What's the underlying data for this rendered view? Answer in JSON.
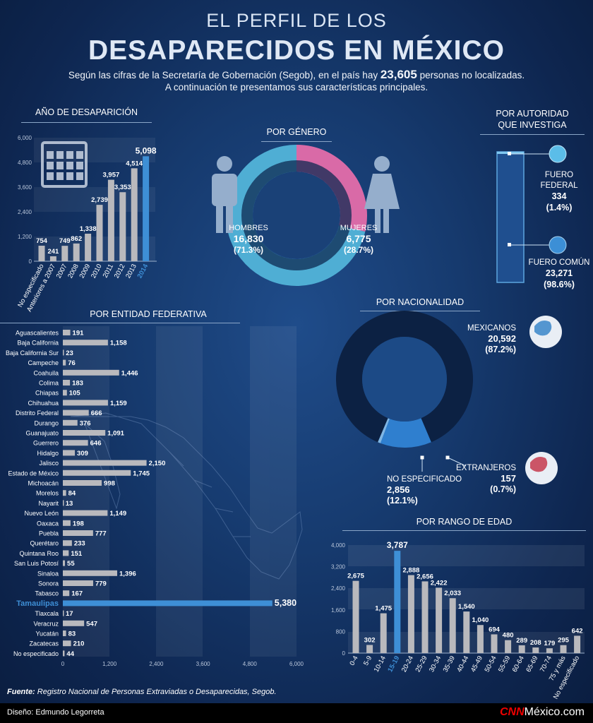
{
  "header": {
    "line1": "EL PERFIL DE LOS",
    "line2": "DESAPARECIDOS EN MÉXICO",
    "subtitle_before": "Según las cifras de la Secretaría de Gobernación (Segob), en el país hay ",
    "subtitle_number": "23,605",
    "subtitle_after": " personas no localizadas.",
    "subtitle_line2": "A continuación te presentamos sus características principales."
  },
  "sections": {
    "year": "AÑO DE DESAPARICIÓN",
    "gender": "POR GÉNERO",
    "authority_1": "POR AUTORIDAD",
    "authority_2": "QUE INVESTIGA",
    "state": "POR ENTIDAD FEDERATIVA",
    "nationality": "POR NACIONALIDAD",
    "age": "POR RANGO DE EDAD"
  },
  "colors": {
    "bar": "#b9b9bd",
    "highlight": "#3e8fd6",
    "pink": "#d96aa7",
    "male": "#4faed4",
    "dark_ring": "#0d2244"
  },
  "chart_data": [
    {
      "id": "year",
      "type": "bar",
      "categories": [
        "No especificado",
        "Anteriores a 2007",
        "2007",
        "2008",
        "2009",
        "2010",
        "2011",
        "2012",
        "2013",
        "2014"
      ],
      "values": [
        754,
        241,
        749,
        862,
        1338,
        2739,
        3957,
        3353,
        4514,
        5098
      ],
      "labels": [
        "754",
        "241",
        "749",
        "862",
        "1,338",
        "2,739",
        "3,957",
        "3,353",
        "4,514",
        "5,098"
      ],
      "highlight": "2014",
      "yticks": [
        "0",
        "1,200",
        "2,400",
        "3,600",
        "4,800",
        "6,000"
      ],
      "ylim": [
        0,
        6000
      ]
    },
    {
      "id": "gender",
      "type": "pie",
      "categories": [
        "HOMBRES",
        "MUJERES"
      ],
      "values": [
        16830,
        6775
      ],
      "value_labels": [
        "16,830",
        "6,775"
      ],
      "pct_labels": [
        "(71.3%)",
        "(28.7%)"
      ],
      "percent": [
        71.3,
        28.7
      ]
    },
    {
      "id": "authority",
      "type": "bar",
      "categories": [
        "FUERO FEDERAL",
        "FUERO COMÚN"
      ],
      "label_lines": [
        [
          "FUERO",
          "FEDERAL"
        ],
        [
          "FUERO COMÚN"
        ]
      ],
      "values": [
        334,
        23271
      ],
      "value_labels": [
        "334",
        "23,271"
      ],
      "pct_labels": [
        "(1.4%)",
        "(98.6%)"
      ],
      "percent": [
        1.4,
        98.6
      ]
    },
    {
      "id": "state",
      "type": "bar",
      "categories": [
        "Aguascalientes",
        "Baja California",
        "Baja California Sur",
        "Campeche",
        "Coahuila",
        "Colima",
        "Chiapas",
        "Chihuahua",
        "Distrito Federal",
        "Durango",
        "Guanajuato",
        "Guerrero",
        "Hidalgo",
        "Jalisco",
        "Estado de México",
        "Michoacán",
        "Morelos",
        "Nayarit",
        "Nuevo León",
        "Oaxaca",
        "Puebla",
        "Querétaro",
        "Quintana Roo",
        "San Luis Potosí",
        "Sinaloa",
        "Sonora",
        "Tabasco",
        "Tamaulipas",
        "Tlaxcala",
        "Veracruz",
        "Yucatán",
        "Zacatecas",
        "No especificado"
      ],
      "values": [
        191,
        1158,
        23,
        76,
        1446,
        183,
        105,
        1159,
        666,
        376,
        1091,
        646,
        309,
        2150,
        1745,
        998,
        84,
        13,
        1149,
        198,
        777,
        233,
        151,
        55,
        1396,
        779,
        167,
        5380,
        17,
        547,
        83,
        210,
        44
      ],
      "labels": [
        "191",
        "1,158",
        "23",
        "76",
        "1,446",
        "183",
        "105",
        "1,159",
        "666",
        "376",
        "1,091",
        "646",
        "309",
        "2,150",
        "1,745",
        "998",
        "84",
        "13",
        "1,149",
        "198",
        "777",
        "233",
        "151",
        "55",
        "1,396",
        "779",
        "167",
        "5,380",
        "17",
        "547",
        "83",
        "210",
        "44"
      ],
      "highlight": "Tamaulipas",
      "xticks": [
        "0",
        "1,200",
        "2,400",
        "3,600",
        "4,800",
        "6,000"
      ],
      "xlim": [
        0,
        6000
      ]
    },
    {
      "id": "nationality",
      "type": "pie",
      "categories": [
        "MEXICANOS",
        "NO ESPECIFICADO",
        "EXTRANJEROS"
      ],
      "values": [
        20592,
        2856,
        157
      ],
      "value_labels": [
        "20,592",
        "2,856",
        "157"
      ],
      "pct_labels": [
        "(87.2%)",
        "(12.1%)",
        "(0.7%)"
      ],
      "percent": [
        87.2,
        12.1,
        0.7
      ]
    },
    {
      "id": "age",
      "type": "bar",
      "categories": [
        "0-4",
        "5-9",
        "10-14",
        "15-19",
        "20-24",
        "25-29",
        "30-34",
        "35-39",
        "40-44",
        "45-49",
        "50-54",
        "55-59",
        "60-64",
        "65-69",
        "70-74",
        "75 y más",
        "No especificado"
      ],
      "values": [
        2675,
        302,
        1475,
        3787,
        2888,
        2656,
        2422,
        2033,
        1540,
        1040,
        694,
        480,
        289,
        208,
        179,
        295,
        642
      ],
      "labels": [
        "2,675",
        "302",
        "1,475",
        "3,787",
        "2,888",
        "2,656",
        "2,422",
        "2,033",
        "1,540",
        "1,040",
        "694",
        "480",
        "289",
        "208",
        "179",
        "295",
        "642"
      ],
      "highlight": "15-19",
      "yticks": [
        "0",
        "800",
        "1,600",
        "2,400",
        "3,200",
        "4,000"
      ],
      "ylim": [
        0,
        4000
      ]
    }
  ],
  "footer": {
    "source_label": "Fuente:",
    "source_text": " Registro Nacional de Personas Extraviadas o Desaparecidas, Segob.",
    "design": "Diseño: Edmundo Legorreta",
    "logo_brand": "CNN",
    "logo_text": "México.com"
  }
}
